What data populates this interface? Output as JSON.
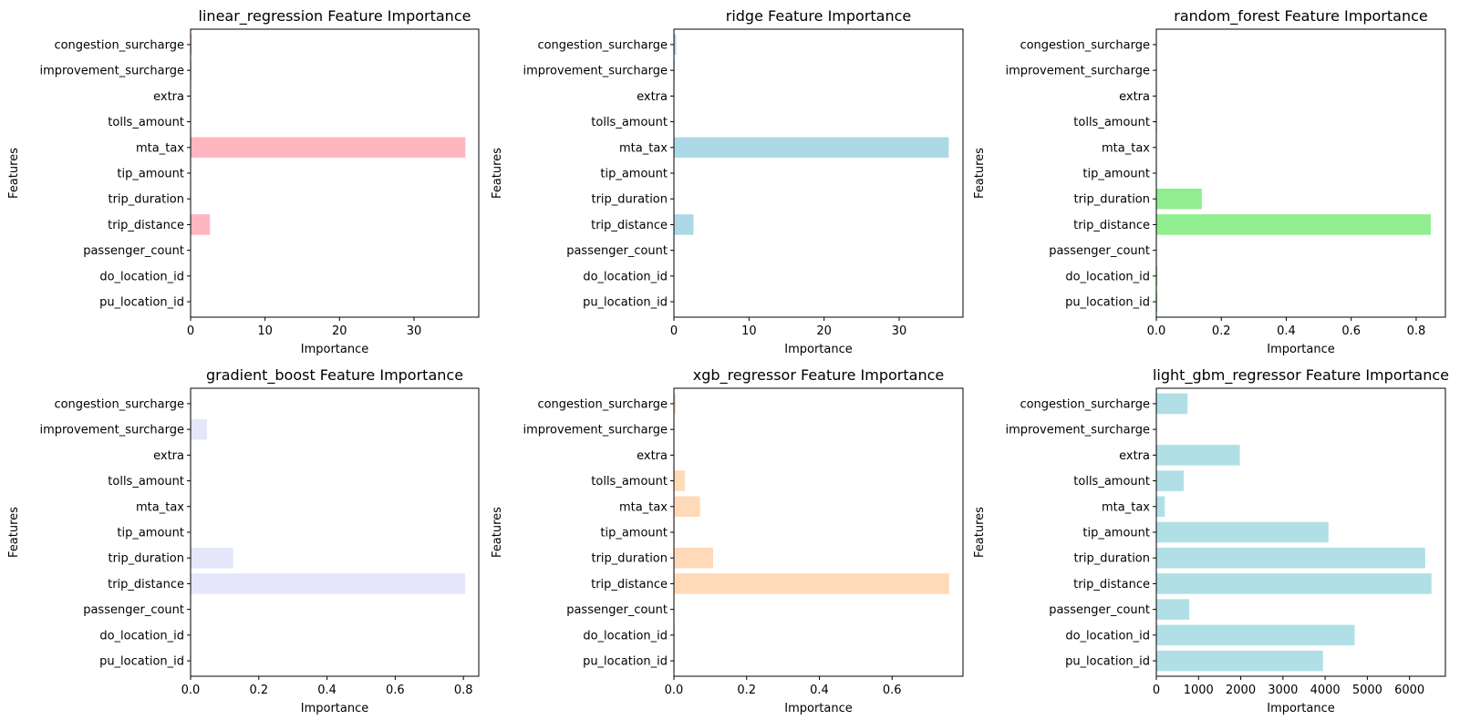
{
  "chart_data": [
    {
      "type": "bar",
      "orientation": "horizontal",
      "title": "linear_regression Feature Importance",
      "xlabel": "Importance",
      "ylabel": "Features",
      "categories": [
        "pu_location_id",
        "do_location_id",
        "passenger_count",
        "trip_distance",
        "trip_duration",
        "tip_amount",
        "mta_tax",
        "tolls_amount",
        "extra",
        "improvement_surcharge",
        "congestion_surcharge"
      ],
      "values": [
        0.0,
        0.0,
        0.02,
        2.6,
        0.05,
        0.0,
        36.9,
        0.0,
        0.02,
        0.1,
        0.15
      ],
      "xlim": [
        0,
        38.7
      ],
      "xticks": [
        0,
        10,
        20,
        30
      ],
      "color": "#ffb6c1",
      "grid": false
    },
    {
      "type": "bar",
      "orientation": "horizontal",
      "title": "ridge Feature Importance",
      "xlabel": "Importance",
      "ylabel": "Features",
      "categories": [
        "pu_location_id",
        "do_location_id",
        "passenger_count",
        "trip_distance",
        "trip_duration",
        "tip_amount",
        "mta_tax",
        "tolls_amount",
        "extra",
        "improvement_surcharge",
        "congestion_surcharge"
      ],
      "values": [
        0.0,
        0.0,
        0.02,
        2.6,
        0.05,
        0.0,
        36.6,
        0.0,
        0.02,
        0.1,
        0.3
      ],
      "xlim": [
        0,
        38.5
      ],
      "xticks": [
        0,
        10,
        20,
        30
      ],
      "color": "#add8e6",
      "grid": false
    },
    {
      "type": "bar",
      "orientation": "horizontal",
      "title": "random_forest Feature Importance",
      "xlabel": "Importance",
      "ylabel": "Features",
      "categories": [
        "pu_location_id",
        "do_location_id",
        "passenger_count",
        "trip_distance",
        "trip_duration",
        "tip_amount",
        "mta_tax",
        "tolls_amount",
        "extra",
        "improvement_surcharge",
        "congestion_surcharge"
      ],
      "values": [
        0.003,
        0.003,
        0.001,
        0.845,
        0.14,
        0.001,
        0.0,
        0.002,
        0.001,
        0.0,
        0.001
      ],
      "xlim": [
        0,
        0.89
      ],
      "xticks": [
        0.0,
        0.2,
        0.4,
        0.6,
        0.8
      ],
      "color": "#90ee90",
      "grid": false
    },
    {
      "type": "bar",
      "orientation": "horizontal",
      "title": "gradient_boost Feature Importance",
      "xlabel": "Importance",
      "ylabel": "Features",
      "categories": [
        "pu_location_id",
        "do_location_id",
        "passenger_count",
        "trip_distance",
        "trip_duration",
        "tip_amount",
        "mta_tax",
        "tolls_amount",
        "extra",
        "improvement_surcharge",
        "congestion_surcharge"
      ],
      "values": [
        0.002,
        0.002,
        0.0,
        0.805,
        0.125,
        0.001,
        0.0,
        0.002,
        0.001,
        0.048,
        0.003
      ],
      "xlim": [
        0,
        0.845
      ],
      "xticks": [
        0.0,
        0.2,
        0.4,
        0.6,
        0.8
      ],
      "color": "#e6e6fa",
      "grid": false
    },
    {
      "type": "bar",
      "orientation": "horizontal",
      "title": "xgb_regressor Feature Importance",
      "xlabel": "Importance",
      "ylabel": "Features",
      "categories": [
        "pu_location_id",
        "do_location_id",
        "passenger_count",
        "trip_distance",
        "trip_duration",
        "tip_amount",
        "mta_tax",
        "tolls_amount",
        "extra",
        "improvement_surcharge",
        "congestion_surcharge"
      ],
      "values": [
        0.002,
        0.002,
        0.001,
        0.757,
        0.108,
        0.002,
        0.072,
        0.03,
        0.001,
        0.0,
        0.005
      ],
      "xlim": [
        0,
        0.795
      ],
      "xticks": [
        0.0,
        0.2,
        0.4,
        0.6
      ],
      "color": "#ffdab9",
      "grid": false
    },
    {
      "type": "bar",
      "orientation": "horizontal",
      "title": "light_gbm_regressor Feature Importance",
      "xlabel": "Importance",
      "ylabel": "Features",
      "categories": [
        "pu_location_id",
        "do_location_id",
        "passenger_count",
        "trip_distance",
        "trip_duration",
        "tip_amount",
        "mta_tax",
        "tolls_amount",
        "extra",
        "improvement_surcharge",
        "congestion_surcharge"
      ],
      "values": [
        3950,
        4700,
        780,
        6520,
        6370,
        4080,
        200,
        650,
        1980,
        0,
        740
      ],
      "xlim": [
        0,
        6850
      ],
      "xticks": [
        0,
        1000,
        2000,
        3000,
        4000,
        5000,
        6000
      ],
      "color": "#b0e0e6",
      "grid": false
    }
  ]
}
